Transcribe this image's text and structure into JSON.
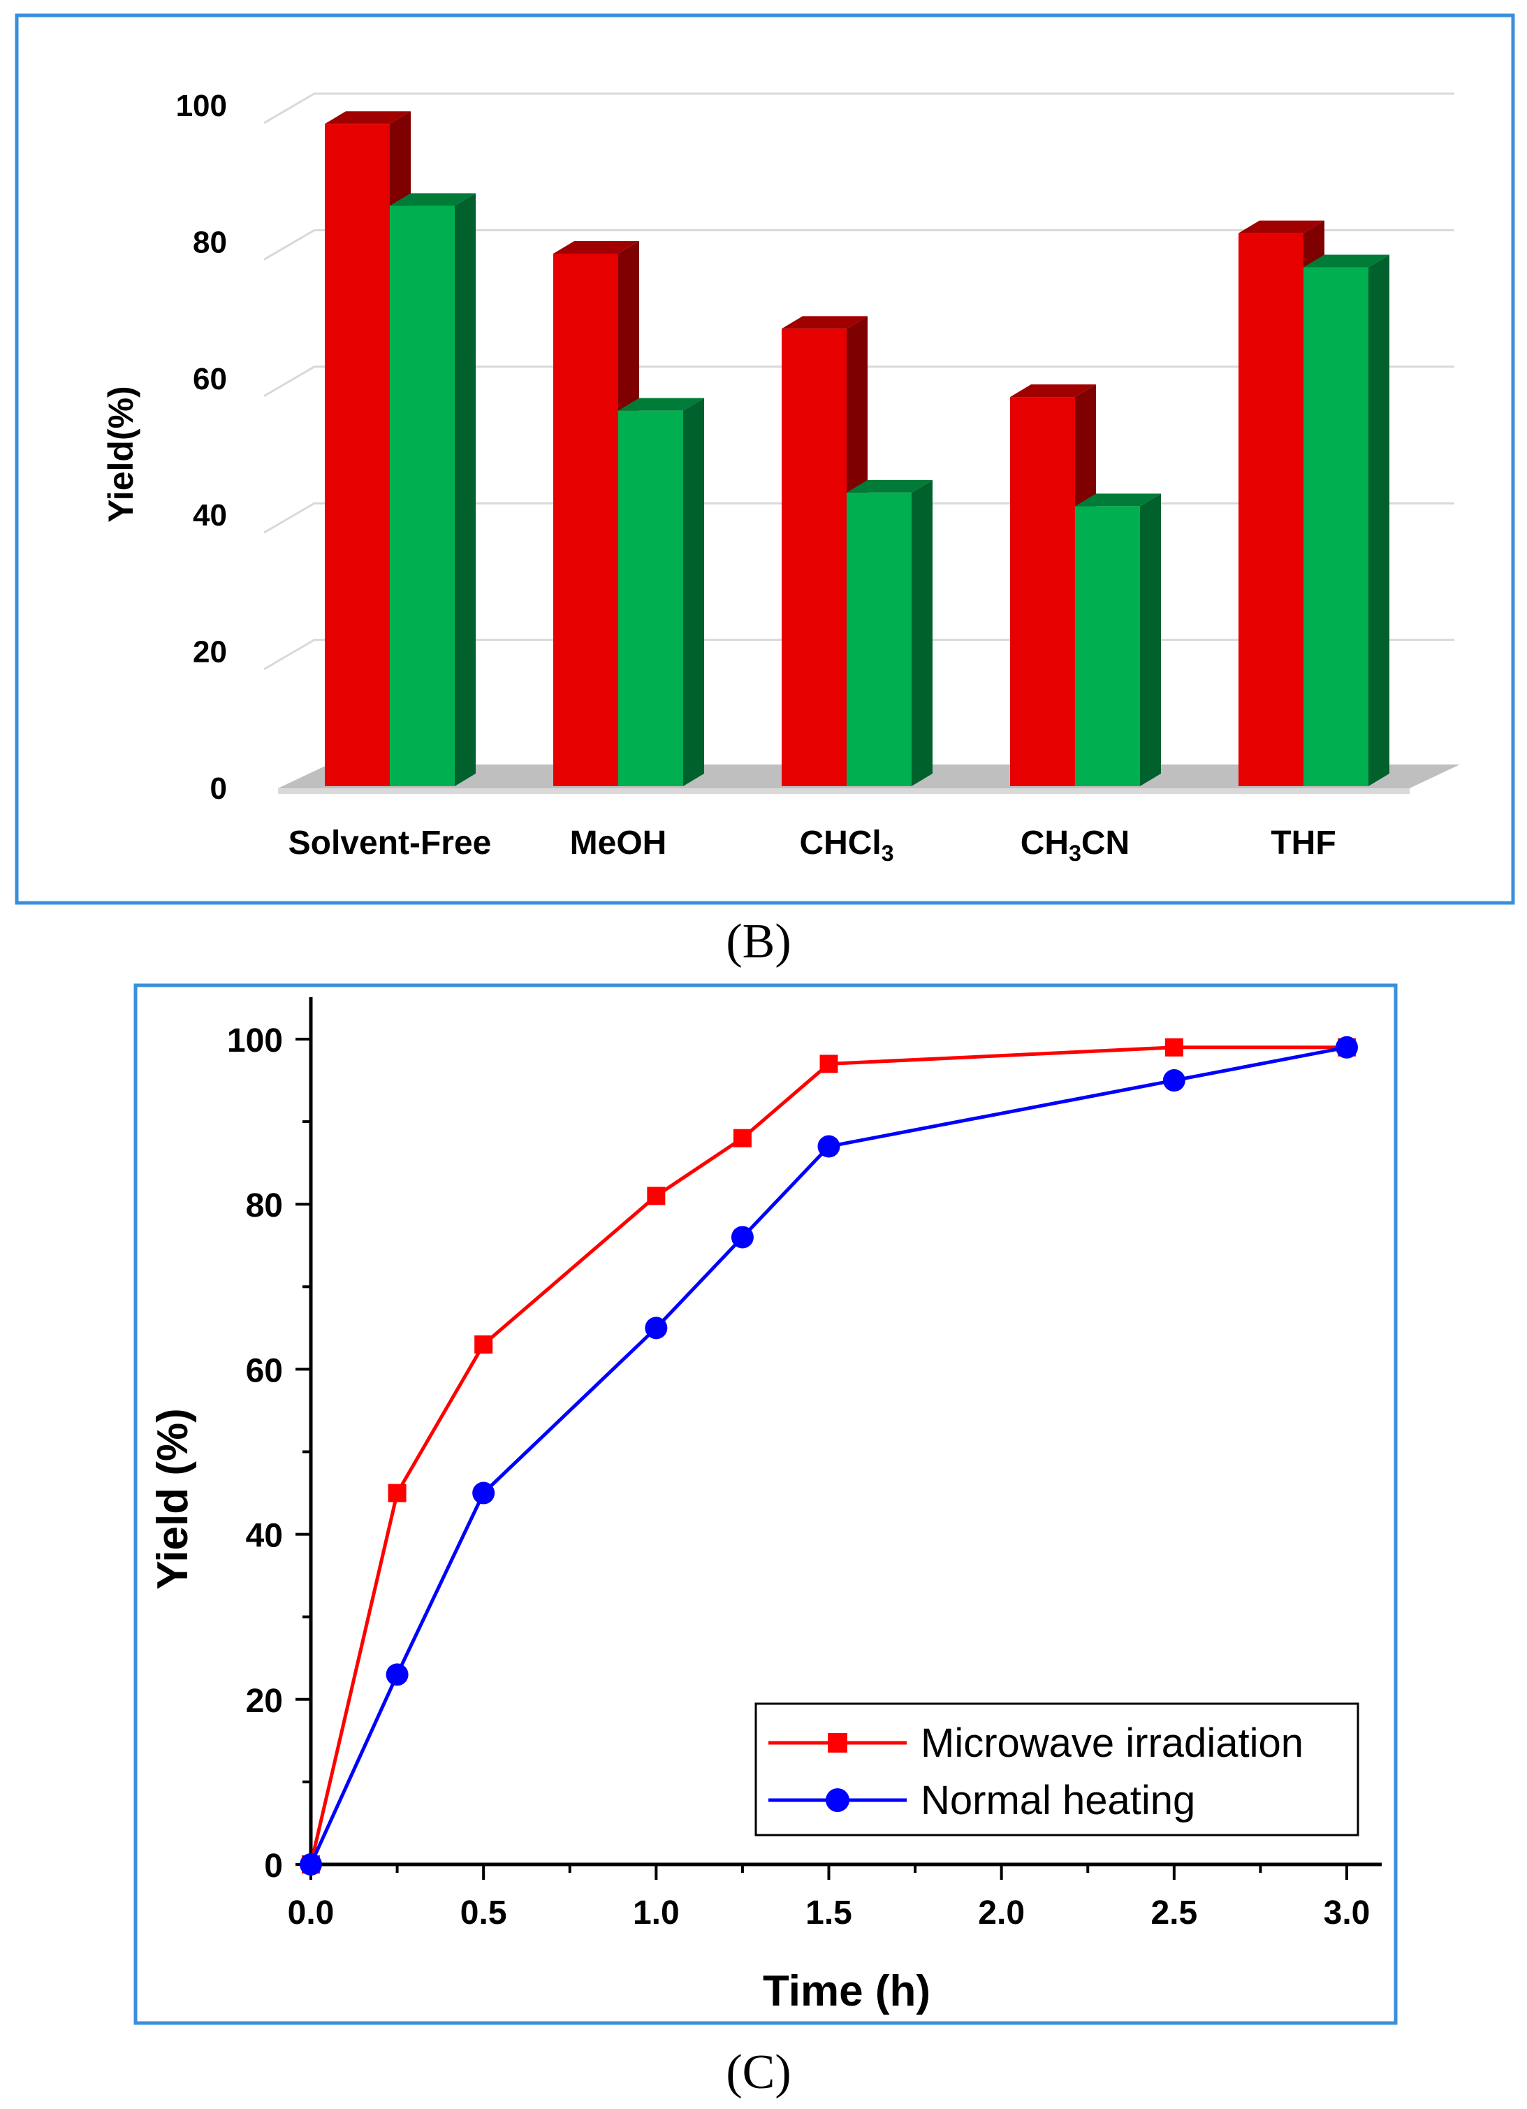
{
  "chart_data": [
    {
      "type": "bar",
      "style": "3d",
      "panel_label": "(B)",
      "ylabel": "Yield(%)",
      "ylim": [
        0,
        100
      ],
      "yticks": [
        "0",
        "20",
        "40",
        "60",
        "80",
        "100"
      ],
      "categories": [
        "Solvent-Free",
        "MeOH",
        "CHCl3",
        "CH3CN",
        "THF"
      ],
      "category_labels": [
        {
          "text": "Solvent-Free",
          "sub": ""
        },
        {
          "text": "MeOH",
          "sub": ""
        },
        {
          "text": "CHCl",
          "sub": "3"
        },
        {
          "text": "CH",
          "sub": "3",
          "tail": "CN"
        },
        {
          "text": "THF",
          "sub": ""
        }
      ],
      "series": [
        {
          "name": "Microwave irradiation",
          "color": "#e60000",
          "values": [
            97,
            78,
            67,
            57,
            81
          ]
        },
        {
          "name": "Normal heating",
          "color": "#00b050",
          "values": [
            85,
            55,
            43,
            41,
            76
          ]
        }
      ],
      "grid": true,
      "legend": "none"
    },
    {
      "type": "line",
      "panel_label": "(C)",
      "xlabel": "Time (h)",
      "ylabel": "Yield (%)",
      "xlim": [
        0,
        3
      ],
      "ylim": [
        0,
        100
      ],
      "xticks": [
        "0.0",
        "0.5",
        "1.0",
        "1.5",
        "2.0",
        "2.5",
        "3.0"
      ],
      "yticks": [
        "0",
        "20",
        "40",
        "60",
        "80",
        "100"
      ],
      "series": [
        {
          "name": "Microwave irradiation",
          "color": "#ff0000",
          "marker": "square",
          "x": [
            0,
            0.25,
            0.5,
            1.0,
            1.25,
            1.5,
            2.5,
            3.0
          ],
          "y": [
            0,
            45,
            63,
            81,
            88,
            97,
            99,
            99
          ]
        },
        {
          "name": "Normal heating",
          "color": "#0000ff",
          "marker": "circle",
          "x": [
            0,
            0.25,
            0.5,
            1.0,
            1.25,
            1.5,
            2.5,
            3.0
          ],
          "y": [
            0,
            23,
            45,
            65,
            76,
            87,
            95,
            99
          ]
        }
      ],
      "grid": false,
      "legend": "bottom-right"
    }
  ]
}
